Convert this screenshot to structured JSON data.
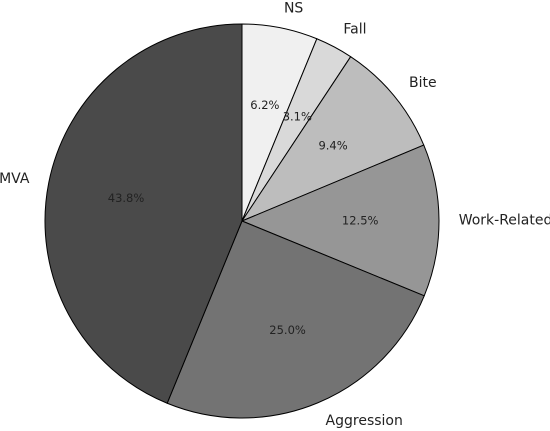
{
  "chart_data": {
    "type": "pie",
    "title": "",
    "start_angle_deg": 90,
    "direction": "clockwise",
    "slices": [
      {
        "label": "NS",
        "value": 6.2,
        "pct_label": "6.2%",
        "color": "#f0f0f0"
      },
      {
        "label": "Fall",
        "value": 3.1,
        "pct_label": "3.1%",
        "color": "#d9d9d9"
      },
      {
        "label": "Bite",
        "value": 9.4,
        "pct_label": "9.4%",
        "color": "#bdbdbd"
      },
      {
        "label": "Work-Related",
        "value": 12.5,
        "pct_label": "12.5%",
        "color": "#969696"
      },
      {
        "label": "Aggression",
        "value": 25.0,
        "pct_label": "25.0%",
        "color": "#737373"
      },
      {
        "label": "MVA",
        "value": 43.8,
        "pct_label": "43.8%",
        "color": "#4a4a4a"
      }
    ]
  }
}
